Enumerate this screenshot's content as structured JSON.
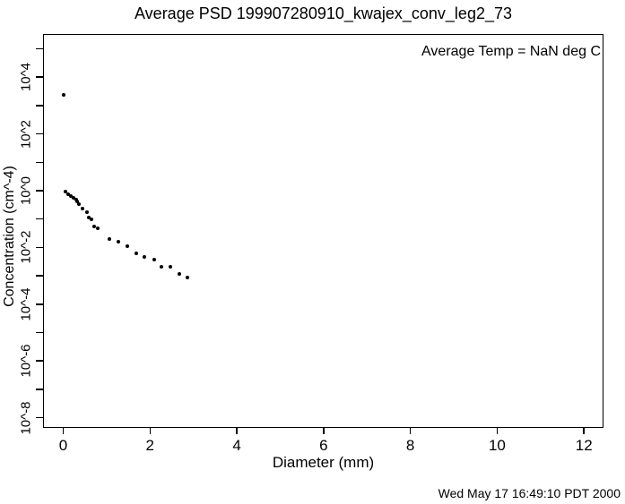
{
  "title": "Average PSD 199907280910_kwajex_conv_leg2_73",
  "annotation": "Average Temp = NaN deg C",
  "footer_timestamp": "Wed May 17 16:49:10 PDT 2000",
  "colors": {
    "foreground": "#000000",
    "background": "#ffffff"
  },
  "chart_data": {
    "type": "scatter",
    "title": "Average PSD 199907280910_kwajex_conv_leg2_73",
    "xlabel": "Diameter (mm)",
    "ylabel": "Concentration (cm^-4)",
    "annotation": "Average Temp = NaN deg C",
    "timestamp": "Wed May 17 16:49:10 PDT 2000",
    "x_scale": "linear",
    "y_scale": "log",
    "xlim": [
      -0.465,
      12.45
    ],
    "ylim_log_exponents": [
      -8.36,
      5.52
    ],
    "grid": false,
    "legend": false,
    "marker": "filled-circle",
    "x_ticks": [
      0,
      2,
      4,
      6,
      8,
      10,
      12
    ],
    "y_ticks": [
      {
        "exp": 5,
        "label": ""
      },
      {
        "exp": 4,
        "label": "10^4"
      },
      {
        "exp": 3,
        "label": ""
      },
      {
        "exp": 2,
        "label": "10^2"
      },
      {
        "exp": 1,
        "label": ""
      },
      {
        "exp": 0,
        "label": "10^0"
      },
      {
        "exp": -1,
        "label": ""
      },
      {
        "exp": -2,
        "label": "10^-2"
      },
      {
        "exp": -3,
        "label": ""
      },
      {
        "exp": -4,
        "label": "10^-4"
      },
      {
        "exp": -5,
        "label": ""
      },
      {
        "exp": -6,
        "label": "10^-6"
      },
      {
        "exp": -7,
        "label": ""
      },
      {
        "exp": -8,
        "label": "10^-8"
      }
    ],
    "points": [
      {
        "diameter_mm": 0.02,
        "concentration": 2290
      },
      {
        "diameter_mm": 0.06,
        "concentration": 0.95
      },
      {
        "diameter_mm": 0.12,
        "concentration": 0.77
      },
      {
        "diameter_mm": 0.17,
        "concentration": 0.66
      },
      {
        "diameter_mm": 0.23,
        "concentration": 0.57
      },
      {
        "diameter_mm": 0.29,
        "concentration": 0.5
      },
      {
        "diameter_mm": 0.33,
        "concentration": 0.43
      },
      {
        "diameter_mm": 0.37,
        "concentration": 0.34
      },
      {
        "diameter_mm": 0.45,
        "concentration": 0.24
      },
      {
        "diameter_mm": 0.54,
        "concentration": 0.17
      },
      {
        "diameter_mm": 0.58,
        "concentration": 0.115
      },
      {
        "diameter_mm": 0.66,
        "concentration": 0.1
      },
      {
        "diameter_mm": 0.72,
        "concentration": 0.056
      },
      {
        "diameter_mm": 0.79,
        "concentration": 0.048
      },
      {
        "diameter_mm": 1.07,
        "concentration": 0.02
      },
      {
        "diameter_mm": 1.28,
        "concentration": 0.016
      },
      {
        "diameter_mm": 1.47,
        "concentration": 0.011
      },
      {
        "diameter_mm": 1.69,
        "concentration": 0.0063
      },
      {
        "diameter_mm": 1.88,
        "concentration": 0.0047
      },
      {
        "diameter_mm": 2.09,
        "concentration": 0.0038
      },
      {
        "diameter_mm": 2.27,
        "concentration": 0.0021
      },
      {
        "diameter_mm": 2.46,
        "concentration": 0.0021
      },
      {
        "diameter_mm": 2.67,
        "concentration": 0.0012
      },
      {
        "diameter_mm": 2.87,
        "concentration": 0.00089
      }
    ]
  }
}
